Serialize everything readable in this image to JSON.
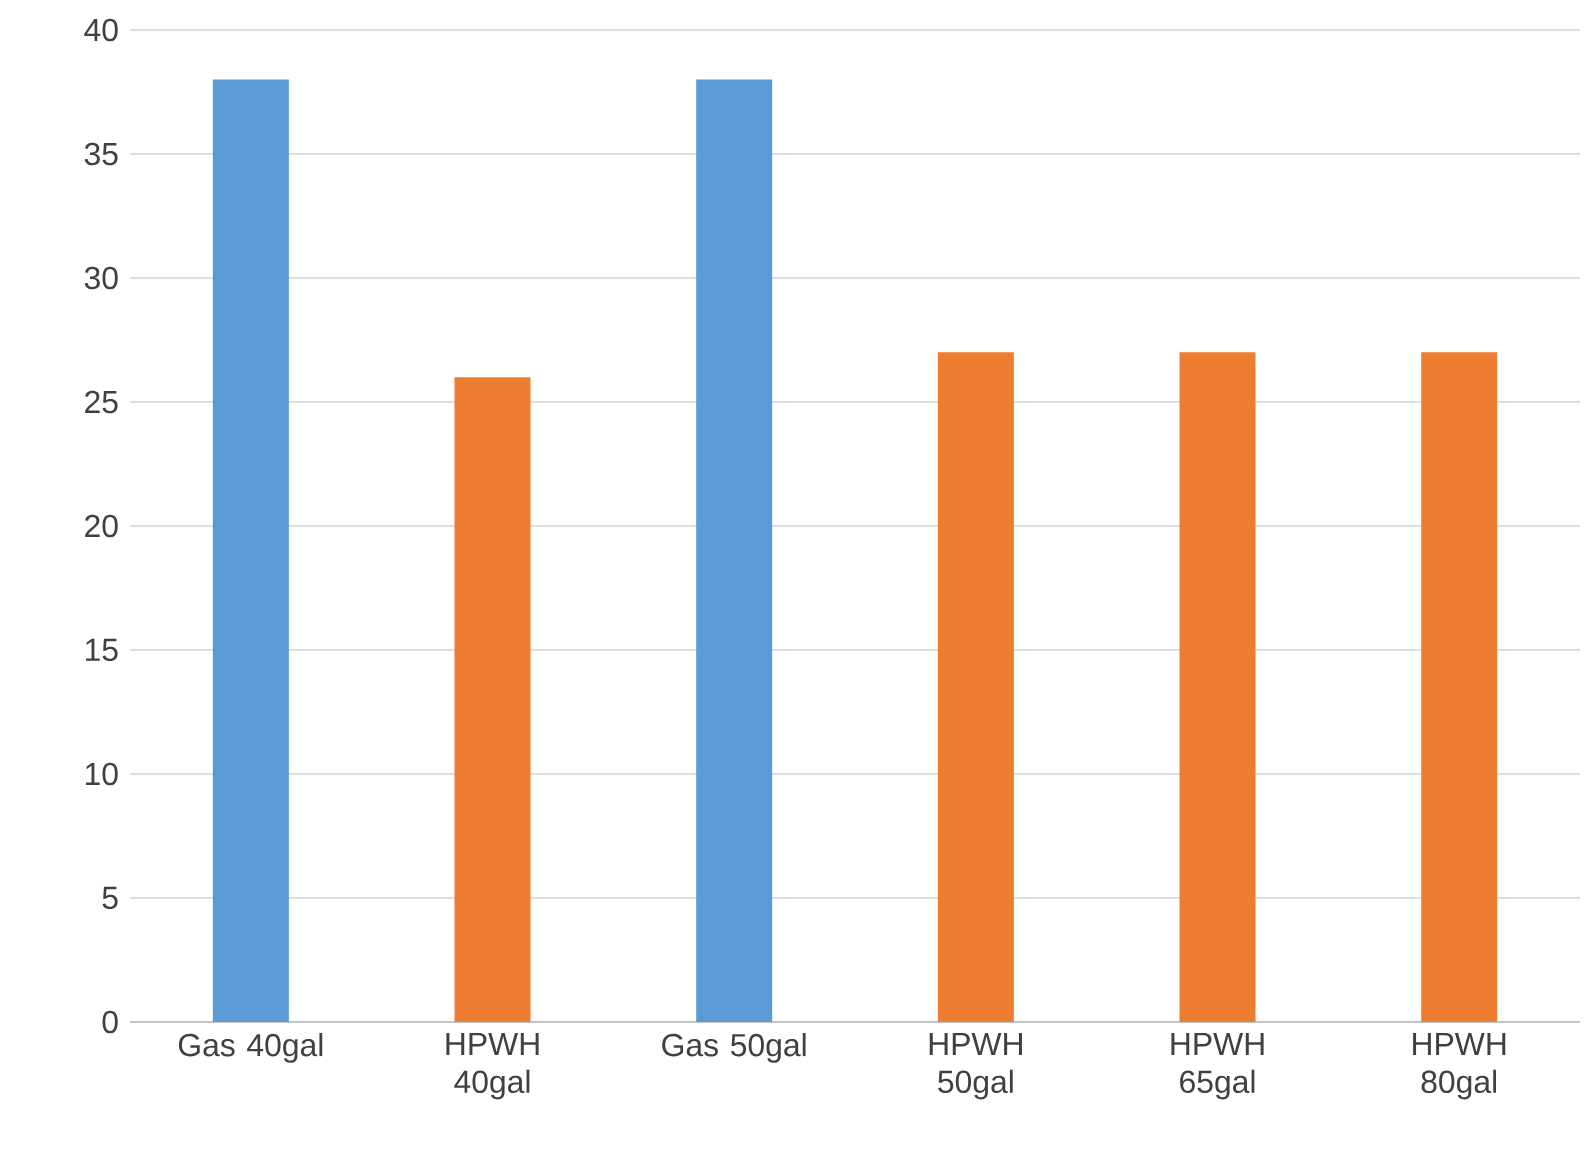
{
  "chart_data": {
    "type": "bar",
    "categories": [
      "Gas 40gal",
      "HPWH 40gal",
      "Gas 50gal",
      "HPWH 50gal",
      "HPWH 65gal",
      "HPWH 80gal"
    ],
    "values": [
      38,
      26,
      38,
      27,
      27,
      27
    ],
    "colors": [
      "#5b9bd5",
      "#ed7d31",
      "#5b9bd5",
      "#ed7d31",
      "#ed7d31",
      "#ed7d31"
    ],
    "ylim": [
      0,
      40
    ],
    "yticks": [
      0,
      5,
      10,
      15,
      20,
      25,
      30,
      35,
      40
    ],
    "grid": "y"
  }
}
